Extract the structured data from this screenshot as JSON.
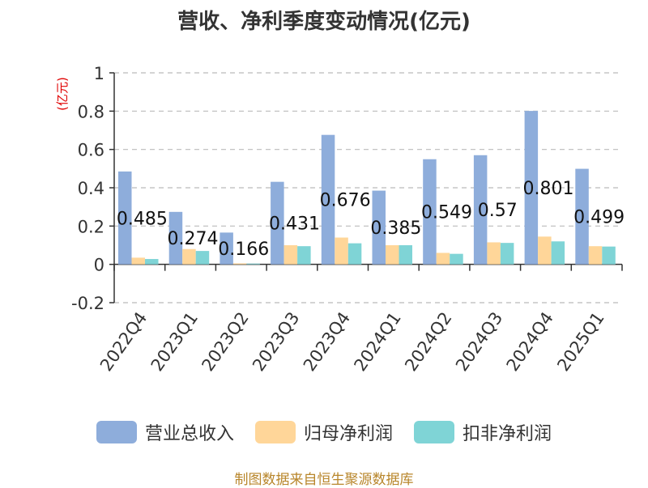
{
  "colors": {
    "revenue": "#8eaddb",
    "net_profit": "#ffd699",
    "non_gaap_profit": "#7fd4d6",
    "axis": "#333333",
    "grid": "#bbbbbb",
    "unit_label": "#e00000",
    "source": "#b8862b"
  },
  "legend": {
    "revenue": "营业总收入",
    "net_profit": "归母净利润",
    "non_gaap_profit": "扣非净利润"
  },
  "source": "制图数据来自恒生聚源数据库",
  "chart_data": {
    "type": "bar",
    "title": "营收、净利季度变动情况(亿元)",
    "ylabel": "(亿元)",
    "ylim": [
      -0.2,
      1
    ],
    "yticks": [
      -0.2,
      0,
      0.2,
      0.4,
      0.6,
      0.8,
      1
    ],
    "ytick_labels": [
      "-0.2",
      "0",
      "0.2",
      "0.4",
      "0.6",
      "0.8",
      "1"
    ],
    "grid": true,
    "legend_position": "bottom",
    "categories": [
      "2022Q4",
      "2023Q1",
      "2023Q2",
      "2023Q3",
      "2023Q4",
      "2024Q1",
      "2024Q2",
      "2024Q3",
      "2024Q4",
      "2025Q1"
    ],
    "series": [
      {
        "name": "营业总收入",
        "values": [
          0.485,
          0.274,
          0.166,
          0.431,
          0.676,
          0.385,
          0.549,
          0.57,
          0.801,
          0.499
        ],
        "data_labels": [
          "0.485",
          "0.274",
          "0.166",
          "0.431",
          "0.676",
          "0.385",
          "0.549",
          "0.57",
          "0.801",
          "0.499"
        ]
      },
      {
        "name": "归母净利润",
        "values": [
          0.035,
          0.08,
          0.005,
          0.1,
          0.14,
          0.1,
          0.06,
          0.115,
          0.145,
          0.095
        ]
      },
      {
        "name": "扣非净利润",
        "values": [
          0.028,
          0.07,
          0.004,
          0.095,
          0.11,
          0.1,
          0.055,
          0.112,
          0.12,
          0.093
        ]
      }
    ]
  }
}
